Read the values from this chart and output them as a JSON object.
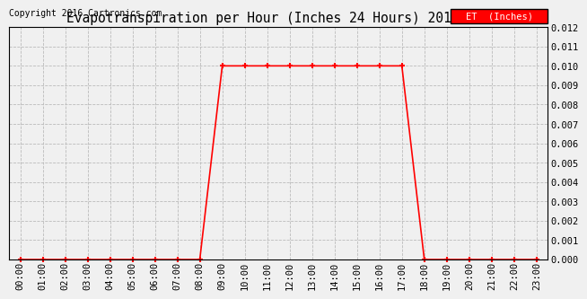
{
  "title": "Evapotranspiration per Hour (Inches 24 Hours) 20160220",
  "copyright": "Copyright 2016 Cartronics.com",
  "legend_label": "ET  (Inches)",
  "legend_bg": "#ff0000",
  "legend_text_color": "#ffffff",
  "line_color": "#ff0000",
  "marker": "+",
  "marker_size": 5,
  "marker_edge_width": 1.5,
  "line_width": 1.2,
  "background_color": "#f0f0f0",
  "grid_color": "#bbbbbb",
  "ylim": [
    0.0,
    0.012
  ],
  "yticks": [
    0.0,
    0.001,
    0.002,
    0.003,
    0.004,
    0.005,
    0.006,
    0.007,
    0.008,
    0.009,
    0.01,
    0.011,
    0.012
  ],
  "hours": [
    0,
    1,
    2,
    3,
    4,
    5,
    6,
    7,
    8,
    9,
    10,
    11,
    12,
    13,
    14,
    15,
    16,
    17,
    18,
    19,
    20,
    21,
    22,
    23
  ],
  "values": [
    0.0,
    0.0,
    0.0,
    0.0,
    0.0,
    0.0,
    0.0,
    0.0,
    0.0,
    0.01,
    0.01,
    0.01,
    0.01,
    0.01,
    0.01,
    0.01,
    0.01,
    0.01,
    0.0,
    0.0,
    0.0,
    0.0,
    0.0,
    0.0
  ],
  "xlabels": [
    "00:00",
    "01:00",
    "02:00",
    "03:00",
    "04:00",
    "05:00",
    "06:00",
    "07:00",
    "08:00",
    "09:00",
    "10:00",
    "11:00",
    "12:00",
    "13:00",
    "14:00",
    "15:00",
    "16:00",
    "17:00",
    "18:00",
    "19:00",
    "20:00",
    "21:00",
    "22:00",
    "23:00"
  ],
  "title_fontsize": 10.5,
  "copyright_fontsize": 7,
  "tick_fontsize": 7.5,
  "ytick_fontsize": 7.5
}
